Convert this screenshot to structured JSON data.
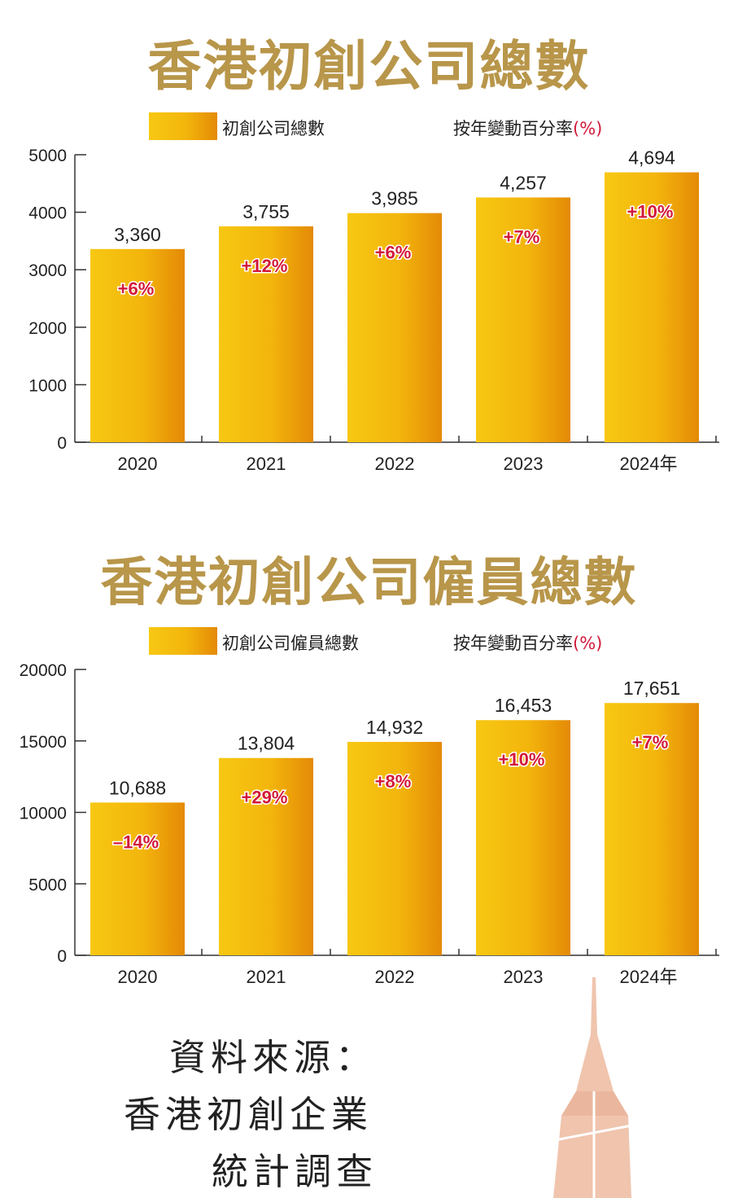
{
  "chart_data": [
    {
      "type": "bar",
      "title": "香港初創公司總數",
      "legend_series": "初創公司總數",
      "legend_change": "按年變動百分率",
      "legend_unit": "(%)",
      "categories": [
        "2020",
        "2021",
        "2022",
        "2023",
        "2024年"
      ],
      "values": [
        3360,
        3755,
        3985,
        4257,
        4694
      ],
      "value_labels": [
        "3,360",
        "3,755",
        "3,985",
        "4,257",
        "4,694"
      ],
      "change_labels": [
        "+6%",
        "+12%",
        "+6%",
        "+7%",
        "+10%"
      ],
      "ylim": [
        0,
        5000
      ],
      "yticks": [
        "0",
        "1000",
        "2000",
        "3000",
        "4000",
        "5000"
      ],
      "grid": false,
      "legend_position": "top",
      "colors": {
        "bar_light": "#f7c813",
        "bar_dark": "#e48a07",
        "change_text": "#d2193a",
        "title": "#b8964a"
      }
    },
    {
      "type": "bar",
      "title": "香港初創公司僱員總數",
      "legend_series": "初創公司僱員總數",
      "legend_change": "按年變動百分率",
      "legend_unit": "(%)",
      "categories": [
        "2020",
        "2021",
        "2022",
        "2023",
        "2024年"
      ],
      "values": [
        10688,
        13804,
        14932,
        16453,
        17651
      ],
      "value_labels": [
        "10,688",
        "13,804",
        "14,932",
        "16,453",
        "17,651"
      ],
      "change_labels": [
        "–14%",
        "+29%",
        "+8%",
        "+10%",
        "+7%"
      ],
      "ylim": [
        0,
        20000
      ],
      "yticks": [
        "0",
        "5000",
        "10000",
        "15000",
        "20000"
      ],
      "grid": false,
      "legend_position": "top",
      "colors": {
        "bar_light": "#f7c813",
        "bar_dark": "#e48a07",
        "change_text": "#d2193a",
        "title": "#b8964a"
      }
    }
  ],
  "source": {
    "line1": "資料來源：",
    "line2": "香港初創企業",
    "line3": "統計調查"
  },
  "decoration": {
    "icon": "building-tower-icon",
    "color": "#f0c4ad"
  }
}
